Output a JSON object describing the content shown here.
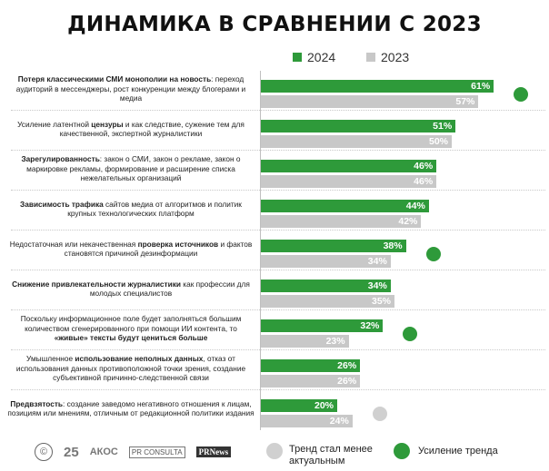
{
  "title": "ДИНАМИКА В СРАВНЕНИИ С 2023",
  "legend": {
    "y2024": "2024",
    "y2023": "2023",
    "grey_dot": "Тренд стал менее актуальным",
    "green_dot": "Усиление тренда"
  },
  "colors": {
    "y2024": "#2e9a3a",
    "y2023": "#c8c8c8",
    "dot_up": "#2e9a3a",
    "dot_down": "#d0d0d0"
  },
  "logos": {
    "c": "©",
    "anniv": "25",
    "akos": "АКОС",
    "prconsulta": "PR CONSULTA",
    "prnews": "PRNews"
  },
  "chart_data": {
    "type": "bar",
    "orientation": "horizontal",
    "title": "ДИНАМИКА В СРАВНЕНИИ С 2023",
    "series": [
      {
        "name": "2024",
        "values": [
          61,
          51,
          46,
          44,
          38,
          34,
          32,
          26,
          20
        ]
      },
      {
        "name": "2023",
        "values": [
          57,
          50,
          46,
          42,
          34,
          35,
          23,
          26,
          24
        ]
      }
    ],
    "value_suffix": "%",
    "xlim": [
      0,
      70
    ],
    "trend_markers": [
      "up",
      null,
      null,
      null,
      "up",
      null,
      "up",
      null,
      "down"
    ],
    "categories": [
      [
        {
          "t": "Потеря классическими СМИ монополии на новость",
          "b": true
        },
        {
          "t": ": переход аудиторий в мессенджеры, рост конкуренции между блогерами и медиа",
          "b": false
        }
      ],
      [
        {
          "t": "Усиление латентной ",
          "b": false
        },
        {
          "t": "цензуры",
          "b": true
        },
        {
          "t": " и как следствие, сужение тем для качественной, экспертной журналистики",
          "b": false
        }
      ],
      [
        {
          "t": "Зарегулированность",
          "b": true
        },
        {
          "t": ": закон о СМИ, закон о рекламе, закон о маркировке рекламы, формирование и расширение списка нежелательных организаций",
          "b": false
        }
      ],
      [
        {
          "t": "Зависимость трафика",
          "b": true
        },
        {
          "t": " сайтов медиа от алгоритмов и политик крупных технологических платформ",
          "b": false
        }
      ],
      [
        {
          "t": "Недостаточная или некачественная ",
          "b": false
        },
        {
          "t": "проверка источников",
          "b": true
        },
        {
          "t": " и фактов становятся причиной дезинформации",
          "b": false
        }
      ],
      [
        {
          "t": "Снижение привлекательности журналистики",
          "b": true
        },
        {
          "t": " как профессии для молодых специалистов",
          "b": false
        }
      ],
      [
        {
          "t": "Поскольку информационное поле будет заполняться большим количеством сгенерированного при помощи ИИ контента, то ",
          "b": false
        },
        {
          "t": "«живые» тексты будут цениться больше",
          "b": true
        }
      ],
      [
        {
          "t": "Умышленное ",
          "b": false
        },
        {
          "t": "использование неполных данных",
          "b": true
        },
        {
          "t": ", отказ от использования данных противоположной точки зрения, создание субъективной причинно-следственной связи",
          "b": false
        }
      ],
      [
        {
          "t": "Предвзятость",
          "b": true
        },
        {
          "t": ": создание заведомо негативного отношения к лицам, позициям или мнениям, отличным от редакционной политики издания",
          "b": false
        }
      ]
    ]
  }
}
